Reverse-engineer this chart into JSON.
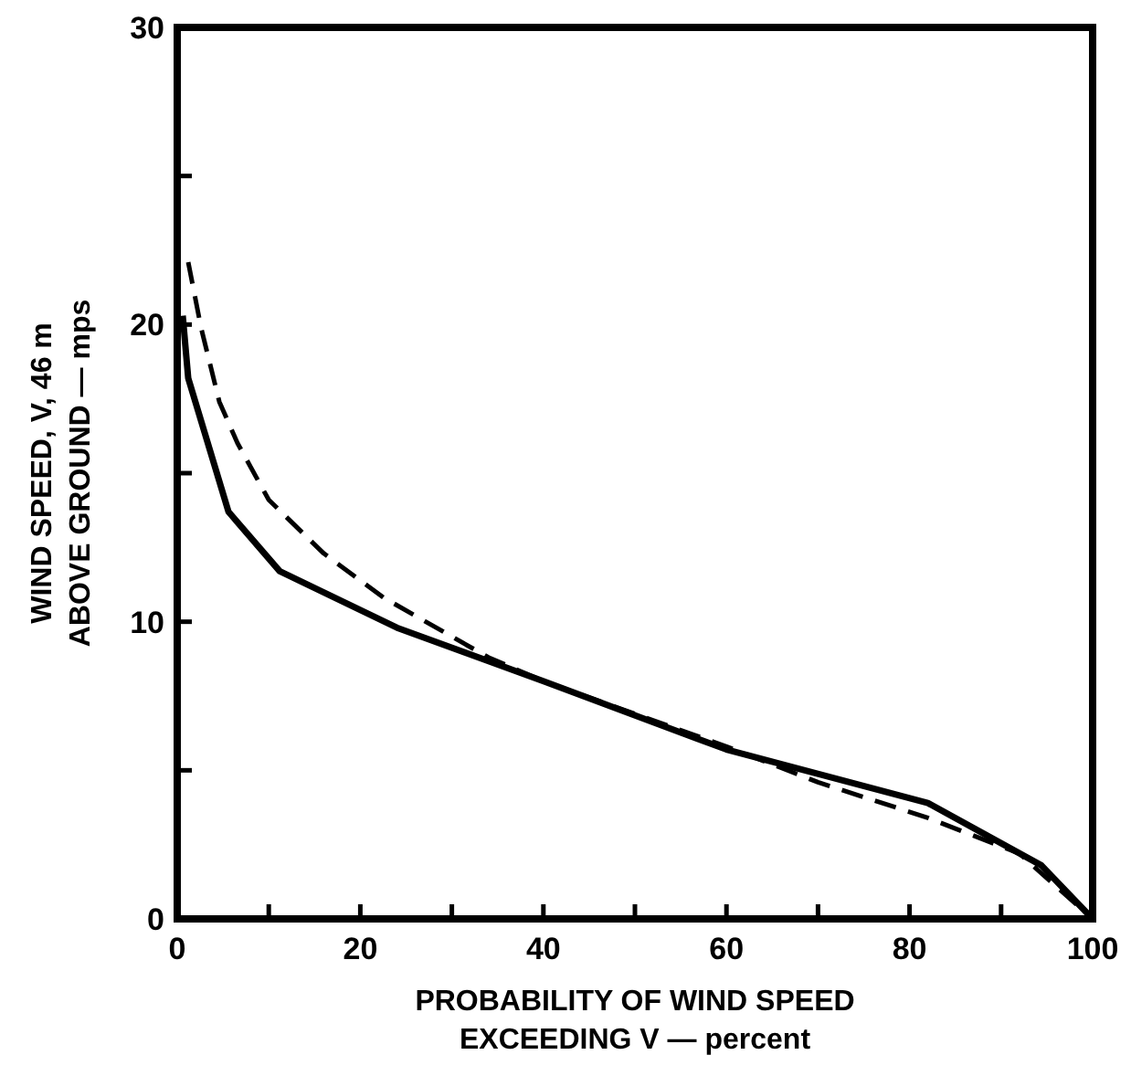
{
  "chart_data": {
    "type": "line",
    "xlabel": "PROBABILITY OF WIND SPEED\nEXCEEDING V — percent",
    "ylabel": "WIND SPEED, V, 46 m\nABOVE GROUND — mps",
    "xlim": [
      0,
      100
    ],
    "ylim": [
      0,
      30
    ],
    "xticks": [
      0,
      {
        "value": 10,
        "label": null
      },
      20,
      {
        "value": 30,
        "label": null
      },
      40,
      {
        "value": 50,
        "label": null
      },
      60,
      {
        "value": 70,
        "label": null
      },
      80,
      {
        "value": 90,
        "label": null
      },
      100
    ],
    "yticks": [
      0,
      {
        "value": 5,
        "label": null
      },
      10,
      {
        "value": 15,
        "label": null
      },
      20,
      {
        "value": 25,
        "label": null
      },
      30
    ],
    "grid": false,
    "series": [
      {
        "color": "#000000",
        "line_style": "solid",
        "x": [
          0.6,
          1.2,
          5.6,
          11.2,
          24,
          40,
          60,
          82,
          94.4,
          100
        ],
        "values": [
          20.3,
          18.2,
          13.7,
          11.7,
          9.8,
          8,
          5.7,
          3.9,
          1.8,
          0
        ]
      },
      {
        "color": "#000000",
        "line_style": "dashed",
        "x": [
          1.2,
          2.6,
          4.6,
          6.6,
          10,
          16,
          22.6,
          34,
          40,
          60,
          70,
          82,
          92,
          100
        ],
        "values": [
          22.1,
          19.9,
          17.4,
          16,
          14.1,
          12.3,
          10.8,
          8.8,
          8,
          5.8,
          4.6,
          3.4,
          2.2,
          0
        ]
      }
    ]
  }
}
